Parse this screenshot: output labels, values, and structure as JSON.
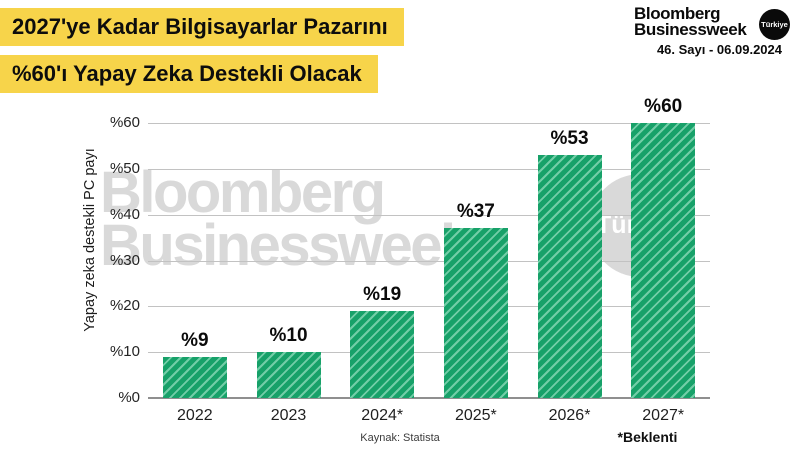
{
  "header": {
    "title_line1": "2027'ye Kadar Bilgisayarlar Pazarını",
    "title_line2": "%60'ı Yapay Zeka Destekli Olacak",
    "highlight_color": "#F7D44A"
  },
  "masthead": {
    "brand_line1": "Bloomberg",
    "brand_line2": "Businessweek",
    "badge": "Türkiye",
    "issue": "46. Sayı - 06.09.2024"
  },
  "watermark": {
    "line1": "Bloomberg",
    "line2": "Businessweek",
    "badge": "Türkiye",
    "color": "#d9d9d9"
  },
  "chart_data": {
    "type": "bar",
    "categories": [
      "2022",
      "2023",
      "2024*",
      "2025*",
      "2026*",
      "2027*"
    ],
    "values": [
      9,
      10,
      19,
      37,
      53,
      60
    ],
    "value_labels": [
      "%9",
      "%10",
      "%19",
      "%37",
      "%53",
      "%60"
    ],
    "ylabel": "Yapay zeka destekli PC payı",
    "y_ticks": [
      0,
      10,
      20,
      30,
      40,
      50,
      60
    ],
    "y_tick_labels": [
      "%0",
      "%10",
      "%20",
      "%30",
      "%40",
      "%50",
      "%60"
    ],
    "ylim": [
      0,
      60
    ],
    "grid": true,
    "legend": "none",
    "bar_color": "#17A169",
    "bar_stripe_color": "#72CDA7",
    "source": "Kaynak: Statista",
    "footnote": "*Beklenti"
  }
}
